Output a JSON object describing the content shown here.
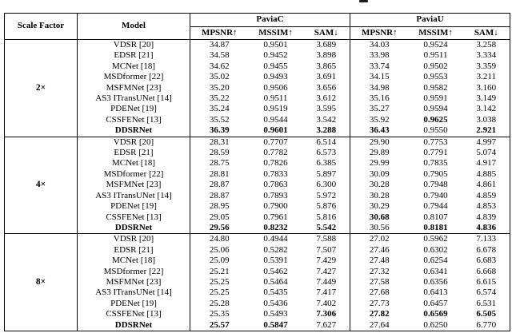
{
  "colors": {
    "background": "#ffffff",
    "text": "#000000",
    "border": "#000000"
  },
  "table": {
    "header": {
      "scale_factor": "Scale Factor",
      "model": "Model",
      "groups": [
        {
          "label": "PaviaC"
        },
        {
          "label": "PaviaU"
        }
      ],
      "metrics": [
        "MPSNR↑",
        "MSSIM↑",
        "SAM↓",
        "MPSNR↑",
        "MSSIM↑",
        "SAM↓"
      ]
    },
    "sections": [
      {
        "scale": "2×",
        "rows": [
          {
            "model": "VDSR [20]",
            "model_bold": false,
            "values": [
              "34.87",
              "0.9501",
              "3.689",
              "34.03",
              "0.9524",
              "3.258"
            ],
            "bold": [
              false,
              false,
              false,
              false,
              false,
              false
            ]
          },
          {
            "model": "EDSR [21]",
            "model_bold": false,
            "values": [
              "34.58",
              "0.9452",
              "3.898",
              "33.98",
              "0.9511",
              "3.334"
            ],
            "bold": [
              false,
              false,
              false,
              false,
              false,
              false
            ]
          },
          {
            "model": "MCNet [18]",
            "model_bold": false,
            "values": [
              "34.62",
              "0.9455",
              "3.865",
              "33.74",
              "0.9502",
              "3.359"
            ],
            "bold": [
              false,
              false,
              false,
              false,
              false,
              false
            ]
          },
          {
            "model": "MSDformer [22]",
            "model_bold": false,
            "values": [
              "35.02",
              "0.9493",
              "3.691",
              "34.15",
              "0.9553",
              "3.211"
            ],
            "bold": [
              false,
              false,
              false,
              false,
              false,
              false
            ]
          },
          {
            "model": "MSFMNet [23]",
            "model_bold": false,
            "values": [
              "35.20",
              "0.9506",
              "3.656",
              "34.98",
              "0.9582",
              "3.160"
            ],
            "bold": [
              false,
              false,
              false,
              false,
              false,
              false
            ]
          },
          {
            "model": "AS3 ITransUNet [14]",
            "model_bold": false,
            "values": [
              "35.22",
              "0.9511",
              "3.612",
              "35.16",
              "0.9591",
              "3.149"
            ],
            "bold": [
              false,
              false,
              false,
              false,
              false,
              false
            ]
          },
          {
            "model": "PDENet [19]",
            "model_bold": false,
            "values": [
              "35.24",
              "0.9519",
              "3.595",
              "35.27",
              "0.9594",
              "3.142"
            ],
            "bold": [
              false,
              false,
              false,
              false,
              false,
              false
            ]
          },
          {
            "model": "CSSFENet [13]",
            "model_bold": false,
            "values": [
              "35.52",
              "0.9544",
              "3.542",
              "35.92",
              "0.9625",
              "3.038"
            ],
            "bold": [
              false,
              false,
              false,
              false,
              true,
              false
            ]
          },
          {
            "model": "DDSRNet",
            "model_bold": true,
            "values": [
              "36.39",
              "0.9601",
              "3.288",
              "36.43",
              "0.9550",
              "2.921"
            ],
            "bold": [
              true,
              true,
              true,
              true,
              false,
              true
            ]
          }
        ]
      },
      {
        "scale": "4×",
        "rows": [
          {
            "model": "VDSR [20]",
            "model_bold": false,
            "values": [
              "28.31",
              "0.7707",
              "6.514",
              "29.90",
              "0.7753",
              "4.997"
            ],
            "bold": [
              false,
              false,
              false,
              false,
              false,
              false
            ]
          },
          {
            "model": "EDSR [21]",
            "model_bold": false,
            "values": [
              "28.59",
              "0.7782",
              "6.573",
              "29.89",
              "0.7791",
              "5.074"
            ],
            "bold": [
              false,
              false,
              false,
              false,
              false,
              false
            ]
          },
          {
            "model": "MCNet [18]",
            "model_bold": false,
            "values": [
              "28.75",
              "0.7826",
              "6.385",
              "29.99",
              "0.7835",
              "4.917"
            ],
            "bold": [
              false,
              false,
              false,
              false,
              false,
              false
            ]
          },
          {
            "model": "MSDformer [22]",
            "model_bold": false,
            "values": [
              "28.81",
              "0.7833",
              "5.897",
              "30.09",
              "0.7905",
              "4.885"
            ],
            "bold": [
              false,
              false,
              false,
              false,
              false,
              false
            ]
          },
          {
            "model": "MSFMNet [23]",
            "model_bold": false,
            "values": [
              "28.87",
              "0.7863",
              "6.300",
              "30.28",
              "0.7948",
              "4.861"
            ],
            "bold": [
              false,
              false,
              false,
              false,
              false,
              false
            ]
          },
          {
            "model": "AS3 ITransUNet [14]",
            "model_bold": false,
            "values": [
              "28.87",
              "0.7893",
              "5.972",
              "30.28",
              "0.7940",
              "4.859"
            ],
            "bold": [
              false,
              false,
              false,
              false,
              false,
              false
            ]
          },
          {
            "model": "PDENet [19]",
            "model_bold": false,
            "values": [
              "28.95",
              "0.7900",
              "5.876",
              "30.29",
              "0.7944",
              "4.853"
            ],
            "bold": [
              false,
              false,
              false,
              false,
              false,
              false
            ]
          },
          {
            "model": "CSSFENet [13]",
            "model_bold": false,
            "values": [
              "29.05",
              "0.7961",
              "5.816",
              "30.68",
              "0.8107",
              "4.839"
            ],
            "bold": [
              false,
              false,
              false,
              true,
              false,
              false
            ]
          },
          {
            "model": "DDSRNet",
            "model_bold": true,
            "values": [
              "29.56",
              "0.8232",
              "5.542",
              "30.56",
              "0.8181",
              "4.836"
            ],
            "bold": [
              true,
              true,
              true,
              false,
              true,
              true
            ]
          }
        ]
      },
      {
        "scale": "8×",
        "rows": [
          {
            "model": "VDSR [20]",
            "model_bold": false,
            "values": [
              "24.80",
              "0.4944",
              "7.588",
              "27.02",
              "0.5962",
              "7.133"
            ],
            "bold": [
              false,
              false,
              false,
              false,
              false,
              false
            ]
          },
          {
            "model": "EDSR [21]",
            "model_bold": false,
            "values": [
              "25.06",
              "0.5282",
              "7.507",
              "27.46",
              "0.6302",
              "6.678"
            ],
            "bold": [
              false,
              false,
              false,
              false,
              false,
              false
            ]
          },
          {
            "model": "MCNet [18]",
            "model_bold": false,
            "values": [
              "25.09",
              "0.5391",
              "7.429",
              "27.48",
              "0.6254",
              "6.683"
            ],
            "bold": [
              false,
              false,
              false,
              false,
              false,
              false
            ]
          },
          {
            "model": "MSDformer [22]",
            "model_bold": false,
            "values": [
              "25.21",
              "0.5462",
              "7.427",
              "27.32",
              "0.6341",
              "6.668"
            ],
            "bold": [
              false,
              false,
              false,
              false,
              false,
              false
            ]
          },
          {
            "model": "MSFMNet [23]",
            "model_bold": false,
            "values": [
              "25.25",
              "0.5464",
              "7.449",
              "27.58",
              "0.6356",
              "6.615"
            ],
            "bold": [
              false,
              false,
              false,
              false,
              false,
              false
            ]
          },
          {
            "model": "AS3 ITransUNet [14]",
            "model_bold": false,
            "values": [
              "25.25",
              "0.5435",
              "7.417",
              "27.68",
              "0.6413",
              "6.574"
            ],
            "bold": [
              false,
              false,
              false,
              false,
              false,
              false
            ]
          },
          {
            "model": "PDENet [19]",
            "model_bold": false,
            "values": [
              "25.28",
              "0.5436",
              "7.402",
              "27.73",
              "0.6457",
              "6.531"
            ],
            "bold": [
              false,
              false,
              false,
              false,
              false,
              false
            ]
          },
          {
            "model": "CSSFENet [13]",
            "model_bold": false,
            "values": [
              "25.35",
              "0.5493",
              "7.306",
              "27.82",
              "0.6569",
              "6.505"
            ],
            "bold": [
              false,
              false,
              true,
              true,
              true,
              true
            ]
          },
          {
            "model": "DDSRNet",
            "model_bold": true,
            "values": [
              "25.57",
              "0.5847",
              "7.627",
              "27.64",
              "0.6250",
              "6.770"
            ],
            "bold": [
              true,
              true,
              false,
              false,
              false,
              false
            ]
          }
        ]
      }
    ]
  }
}
